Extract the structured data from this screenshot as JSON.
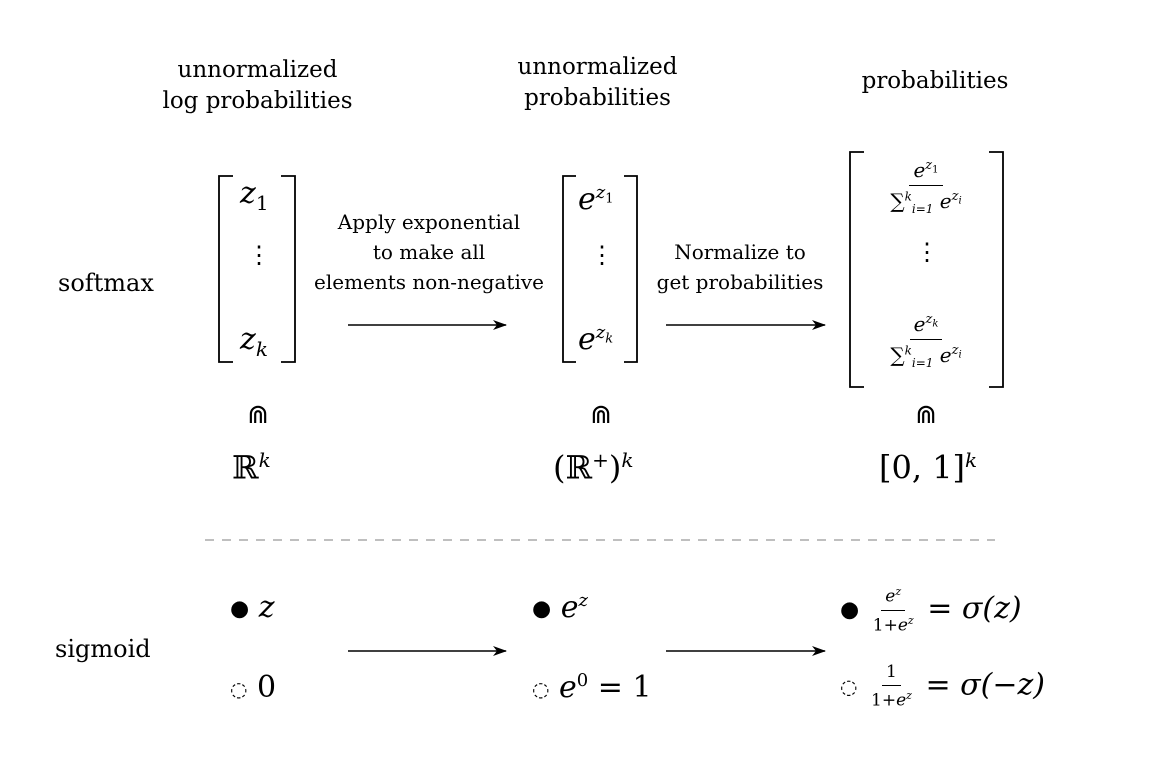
{
  "headers": {
    "col1_line1": "unnormalized",
    "col1_line2": "log probabilities",
    "col2_line1": "unnormalized",
    "col2_line2": "probabilities",
    "col3": "probabilities"
  },
  "rows": {
    "softmax": "softmax",
    "sigmoid": "sigmoid"
  },
  "arrows": {
    "exp_line1": "Apply exponential",
    "exp_line2": "to make all",
    "exp_line3": "elements non-negative",
    "norm_line1": "Normalize to",
    "norm_line2": "get probabilities"
  },
  "math": {
    "z": "z",
    "sub1": "1",
    "subk": "k",
    "e": "e",
    "sum": "∑",
    "sum_sup": "k",
    "sum_sub": "i=1",
    "sub_i": "i",
    "vdots": "⋮",
    "in_symbol": "⋒",
    "reals": "ℝ",
    "plus": "+",
    "open_paren": "(",
    "close_paren": ")",
    "interval": "[0, 1]",
    "sup_k": "k"
  },
  "sigmoid": {
    "filled_dot": "●",
    "open_dot": "◌",
    "z_label": "z",
    "zero": "0",
    "e": "e",
    "sup_z": "z",
    "sup_zero": "0",
    "eq_one": "= 1",
    "one_plus": "1+",
    "one": "1",
    "eq": "=",
    "sigma_pos": "σ(z)",
    "sigma_neg": "σ(−z)"
  }
}
